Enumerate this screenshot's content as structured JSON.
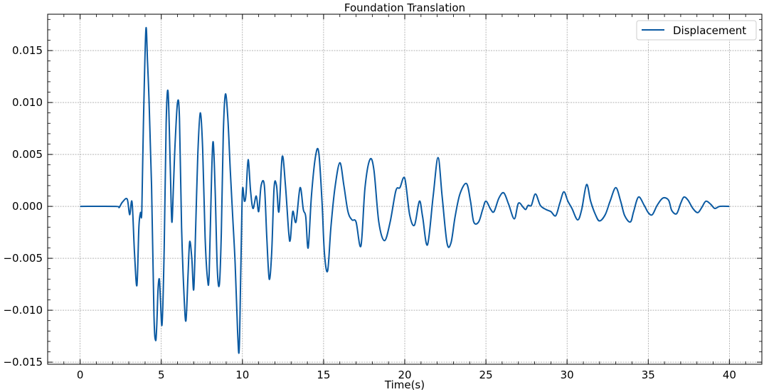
{
  "chart_data": {
    "type": "line",
    "title": "Foundation Translation",
    "xlabel": "Time(s)",
    "ylabel": "",
    "xlim": [
      -2,
      42
    ],
    "ylim": [
      -0.0152,
      0.0185
    ],
    "xticks": [
      0,
      5,
      10,
      15,
      20,
      25,
      30,
      35,
      40
    ],
    "xtick_labels": [
      "0",
      "5",
      "10",
      "15",
      "20",
      "25",
      "30",
      "35",
      "40"
    ],
    "yticks": [
      -0.015,
      -0.01,
      -0.005,
      0.0,
      0.005,
      0.01,
      0.015
    ],
    "ytick_labels": [
      "−0.015",
      "−0.010",
      "−0.005",
      "0.000",
      "0.005",
      "0.010",
      "0.015"
    ],
    "grid": true,
    "legend_position": "top-right",
    "series": [
      {
        "name": "Displacement",
        "color": "#0b5aa2",
        "points": [
          [
            0,
            0
          ],
          [
            2.2,
            0
          ],
          [
            2.4,
            -0.0001
          ],
          [
            2.6,
            0.0004
          ],
          [
            2.9,
            0.0007
          ],
          [
            3.05,
            -0.0008
          ],
          [
            3.2,
            0.0004
          ],
          [
            3.35,
            -0.0045
          ],
          [
            3.5,
            -0.0076
          ],
          [
            3.62,
            -0.002
          ],
          [
            3.72,
            -0.0006
          ],
          [
            3.8,
            -0.0005
          ],
          [
            3.9,
            0.008
          ],
          [
            4.05,
            0.017
          ],
          [
            4.15,
            0.014
          ],
          [
            4.25,
            0.01
          ],
          [
            4.4,
            0.002
          ],
          [
            4.55,
            -0.0105
          ],
          [
            4.65,
            -0.0129
          ],
          [
            4.72,
            -0.0115
          ],
          [
            4.8,
            -0.008
          ],
          [
            4.88,
            -0.007
          ],
          [
            4.95,
            -0.009
          ],
          [
            5.05,
            -0.0113
          ],
          [
            5.18,
            -0.004
          ],
          [
            5.3,
            0.008
          ],
          [
            5.42,
            0.011
          ],
          [
            5.55,
            0.004
          ],
          [
            5.65,
            -0.0015
          ],
          [
            5.75,
            0.002
          ],
          [
            5.85,
            0.006
          ],
          [
            6.0,
            0.01
          ],
          [
            6.12,
            0.0085
          ],
          [
            6.25,
            -0.002
          ],
          [
            6.4,
            -0.0085
          ],
          [
            6.52,
            -0.011
          ],
          [
            6.65,
            -0.0065
          ],
          [
            6.75,
            -0.0034
          ],
          [
            6.88,
            -0.005
          ],
          [
            7.0,
            -0.008
          ],
          [
            7.12,
            -0.002
          ],
          [
            7.25,
            0.005
          ],
          [
            7.4,
            0.009
          ],
          [
            7.55,
            0.0055
          ],
          [
            7.7,
            -0.003
          ],
          [
            7.85,
            -0.007
          ],
          [
            7.95,
            -0.0065
          ],
          [
            8.1,
            0.003
          ],
          [
            8.2,
            0.0062
          ],
          [
            8.32,
            0.0015
          ],
          [
            8.45,
            -0.006
          ],
          [
            8.58,
            -0.0075
          ],
          [
            8.7,
            -0.0025
          ],
          [
            8.82,
            0.007
          ],
          [
            8.95,
            0.0108
          ],
          [
            9.1,
            0.0085
          ],
          [
            9.25,
            0.0035
          ],
          [
            9.4,
            -0.001
          ],
          [
            9.55,
            -0.0055
          ],
          [
            9.7,
            -0.012
          ],
          [
            9.8,
            -0.0138
          ],
          [
            9.9,
            -0.006
          ],
          [
            10.0,
            0.0015
          ],
          [
            10.12,
            0.0005
          ],
          [
            10.22,
            0.0012
          ],
          [
            10.35,
            0.0045
          ],
          [
            10.5,
            0.0015
          ],
          [
            10.65,
            -0.0002
          ],
          [
            10.85,
            0.001
          ],
          [
            11.0,
            -0.0005
          ],
          [
            11.15,
            0.002
          ],
          [
            11.35,
            0.002
          ],
          [
            11.5,
            -0.003
          ],
          [
            11.65,
            -0.007
          ],
          [
            11.8,
            -0.0045
          ],
          [
            11.95,
            0.0018
          ],
          [
            12.1,
            0.002
          ],
          [
            12.25,
            -0.0005
          ],
          [
            12.45,
            0.0048
          ],
          [
            12.65,
            0.002
          ],
          [
            12.85,
            -0.0025
          ],
          [
            12.95,
            -0.0032
          ],
          [
            13.1,
            -0.0005
          ],
          [
            13.3,
            -0.0015
          ],
          [
            13.55,
            0.0018
          ],
          [
            13.75,
            -0.0003
          ],
          [
            13.9,
            -0.001
          ],
          [
            14.05,
            -0.004
          ],
          [
            14.25,
            0.001
          ],
          [
            14.5,
            0.0048
          ],
          [
            14.7,
            0.0052
          ],
          [
            14.9,
            0.0005
          ],
          [
            15.05,
            -0.0045
          ],
          [
            15.25,
            -0.0062
          ],
          [
            15.45,
            -0.002
          ],
          [
            15.7,
            0.0018
          ],
          [
            16.0,
            0.0042
          ],
          [
            16.25,
            0.002
          ],
          [
            16.5,
            -0.0005
          ],
          [
            16.75,
            -0.0013
          ],
          [
            17.0,
            -0.0015
          ],
          [
            17.3,
            -0.0038
          ],
          [
            17.55,
            0.0018
          ],
          [
            17.85,
            0.0045
          ],
          [
            18.1,
            0.0035
          ],
          [
            18.4,
            -0.0015
          ],
          [
            18.75,
            -0.0033
          ],
          [
            19.1,
            -0.0015
          ],
          [
            19.45,
            0.0015
          ],
          [
            19.7,
            0.0018
          ],
          [
            20.0,
            0.0027
          ],
          [
            20.3,
            -0.0008
          ],
          [
            20.6,
            -0.0018
          ],
          [
            20.9,
            0.0005
          ],
          [
            21.1,
            -0.001
          ],
          [
            21.4,
            -0.0037
          ],
          [
            21.75,
            0.001
          ],
          [
            22.05,
            0.0047
          ],
          [
            22.3,
            0.001
          ],
          [
            22.6,
            -0.0035
          ],
          [
            22.85,
            -0.0035
          ],
          [
            23.1,
            -0.001
          ],
          [
            23.4,
            0.0012
          ],
          [
            23.8,
            0.0022
          ],
          [
            24.05,
            0.0005
          ],
          [
            24.25,
            -0.0015
          ],
          [
            24.55,
            -0.0015
          ],
          [
            24.8,
            -0.0003
          ],
          [
            25.0,
            0.0005
          ],
          [
            25.3,
            -0.0003
          ],
          [
            25.5,
            -0.0005
          ],
          [
            25.8,
            0.0008
          ],
          [
            26.1,
            0.0013
          ],
          [
            26.4,
            0.0002
          ],
          [
            26.75,
            -0.0012
          ],
          [
            27.0,
            0.0003
          ],
          [
            27.3,
            -0.0001
          ],
          [
            27.45,
            -0.0003
          ],
          [
            27.6,
            0.0001
          ],
          [
            27.8,
            0.0001
          ],
          [
            28.05,
            0.0012
          ],
          [
            28.35,
            0.0001
          ],
          [
            28.7,
            -0.0003
          ],
          [
            29.0,
            -0.0005
          ],
          [
            29.3,
            -0.0009
          ],
          [
            29.55,
            0.0003
          ],
          [
            29.8,
            0.0014
          ],
          [
            30.05,
            0.0005
          ],
          [
            30.3,
            -0.0002
          ],
          [
            30.65,
            -0.0013
          ],
          [
            30.9,
            -0.0003
          ],
          [
            31.2,
            0.0021
          ],
          [
            31.45,
            0.0005
          ],
          [
            31.75,
            -0.0008
          ],
          [
            32.0,
            -0.0014
          ],
          [
            32.35,
            -0.0008
          ],
          [
            32.65,
            0.0005
          ],
          [
            33.0,
            0.0018
          ],
          [
            33.3,
            0.0005
          ],
          [
            33.55,
            -0.0009
          ],
          [
            33.9,
            -0.0015
          ],
          [
            34.1,
            -0.0005
          ],
          [
            34.4,
            0.0009
          ],
          [
            34.75,
            0.0001
          ],
          [
            35.0,
            -0.0006
          ],
          [
            35.25,
            -0.0008
          ],
          [
            35.55,
            0.0001
          ],
          [
            35.9,
            0.0008
          ],
          [
            36.25,
            0.0006
          ],
          [
            36.45,
            -0.0004
          ],
          [
            36.75,
            -0.0007
          ],
          [
            37.0,
            0.0003
          ],
          [
            37.2,
            0.0009
          ],
          [
            37.45,
            0.0006
          ],
          [
            37.75,
            -0.0002
          ],
          [
            38.05,
            -0.0006
          ],
          [
            38.3,
            -0.0001
          ],
          [
            38.55,
            0.0005
          ],
          [
            38.85,
            0.0002
          ],
          [
            39.1,
            -0.0002
          ],
          [
            39.4,
            0.0
          ],
          [
            40.0,
            0.0
          ]
        ]
      }
    ]
  }
}
